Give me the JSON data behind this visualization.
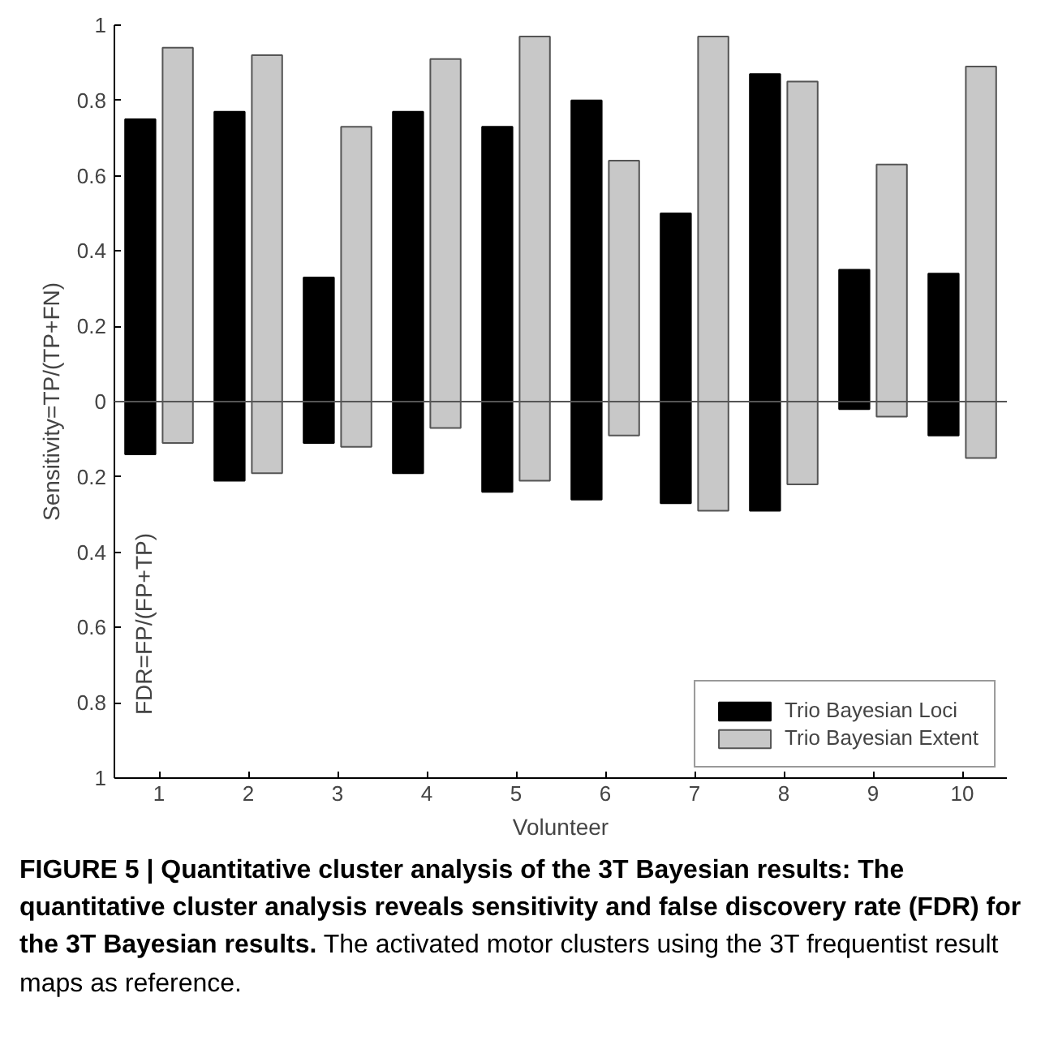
{
  "chart_data": {
    "type": "bar",
    "xlabel": "Volunteer",
    "ylabel": "Sensitivity=TP/(TP+FN)",
    "categories": [
      "1",
      "2",
      "3",
      "4",
      "5",
      "6",
      "7",
      "8",
      "9",
      "10"
    ],
    "series": [
      {
        "name": "Trio Bayesian Loci",
        "color": "#000000",
        "base": [
          -0.14,
          -0.21,
          -0.11,
          -0.19,
          -0.24,
          -0.26,
          -0.27,
          -0.29,
          -0.02,
          -0.09
        ],
        "values": [
          0.89,
          0.98,
          0.44,
          0.96,
          0.97,
          1.06,
          0.77,
          1.16,
          0.37,
          0.43
        ]
      },
      {
        "name": "Trio Bayesian Extent",
        "color": "#c8c8c8",
        "base": [
          -0.11,
          -0.19,
          -0.12,
          -0.07,
          -0.21,
          -0.09,
          -0.29,
          -0.22,
          -0.04,
          -0.15
        ],
        "values": [
          1.05,
          1.11,
          0.85,
          0.98,
          1.18,
          0.73,
          1.26,
          1.07,
          0.67,
          1.04
        ]
      }
    ],
    "ylim": [
      -1,
      1
    ],
    "yticks": [
      {
        "value": -1,
        "label": "1"
      },
      {
        "value": -0.8,
        "label": "0.8"
      },
      {
        "value": -0.6,
        "label": "0.6"
      },
      {
        "value": -0.4,
        "label": "0.4"
      },
      {
        "value": -0.2,
        "label": "0.2"
      },
      0,
      0.2,
      0.4,
      0.6,
      0.8,
      1
    ],
    "ref_lines": [
      {
        "axis": "y",
        "value": 0,
        "color": "#555555"
      }
    ],
    "legend": "bottom right",
    "grid": false,
    "annotations": [
      "FDR=FP/(FP+TP)",
      "FIGURE 5 | Quantitative cluster analysis of the 3T Bayesian results: The quantitative cluster analysis reveals sensitivity and false discovery rate (FDR) for the 3T Bayesian results.",
      "The activated motor clusters using the 3T frequentist result maps as reference."
    ]
  }
}
